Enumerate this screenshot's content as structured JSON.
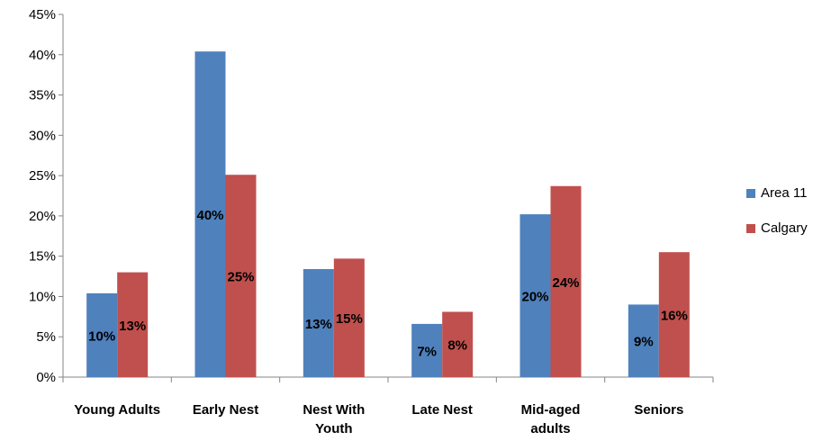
{
  "chart_data": {
    "type": "bar",
    "categories": [
      "Young Adults",
      "Early Nest",
      "Nest With Youth",
      "Late Nest",
      "Mid-aged adults",
      "Seniors"
    ],
    "category_lines": [
      [
        "Young Adults"
      ],
      [
        "Early Nest"
      ],
      [
        "Nest With",
        "Youth"
      ],
      [
        "Late Nest"
      ],
      [
        "Mid-aged",
        "adults"
      ],
      [
        "Seniors"
      ]
    ],
    "series": [
      {
        "name": "Area 11",
        "values": [
          10.4,
          40.4,
          13.4,
          6.6,
          20.2,
          9.0
        ],
        "labels": [
          "10%",
          "40%",
          "13%",
          "7%",
          "20%",
          "9%"
        ],
        "color": "#4F81BD"
      },
      {
        "name": "Calgary",
        "values": [
          13.0,
          25.1,
          14.7,
          8.1,
          23.7,
          15.5
        ],
        "labels": [
          "13%",
          "25%",
          "15%",
          "8%",
          "24%",
          "16%"
        ],
        "color": "#C0504D"
      }
    ],
    "ylim": [
      0,
      45
    ],
    "yticks": [
      "0%",
      "5%",
      "10%",
      "15%",
      "20%",
      "25%",
      "30%",
      "35%",
      "40%",
      "45%"
    ],
    "grid": false,
    "legend": "right",
    "title": "",
    "xlabel": "",
    "ylabel": ""
  }
}
